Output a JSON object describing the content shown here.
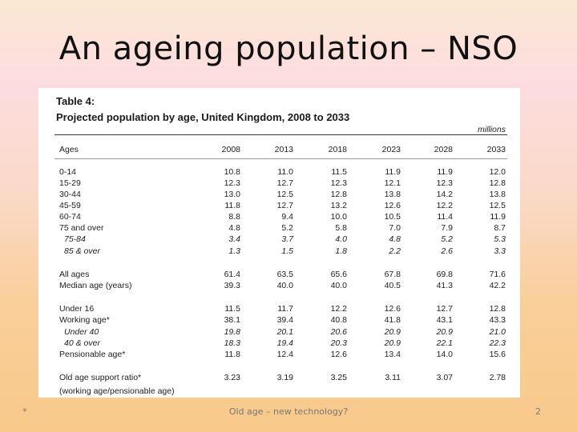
{
  "slide": {
    "title": "An ageing population – NSO",
    "footer_left": "*",
    "footer_center": "Old age – new technology?",
    "page_number": "2"
  },
  "table": {
    "caption": "Table 4:",
    "subcaption": "Projected population by age, United Kingdom, 2008 to 2033",
    "units": "millions",
    "header": {
      "label": "Ages",
      "years": [
        "2008",
        "2013",
        "2018",
        "2023",
        "2028",
        "2033"
      ]
    },
    "rows": [
      {
        "label": "0-14",
        "values": [
          "10.8",
          "11.0",
          "11.5",
          "11.9",
          "11.9",
          "12.0"
        ]
      },
      {
        "label": "15-29",
        "values": [
          "12.3",
          "12.7",
          "12.3",
          "12.1",
          "12.3",
          "12.8"
        ]
      },
      {
        "label": "30-44",
        "values": [
          "13.0",
          "12.5",
          "12.8",
          "13.8",
          "14.2",
          "13.8"
        ]
      },
      {
        "label": "45-59",
        "values": [
          "11.8",
          "12.7",
          "13.2",
          "12.6",
          "12.2",
          "12.5"
        ]
      },
      {
        "label": "60-74",
        "values": [
          "8.8",
          "9.4",
          "10.0",
          "10.5",
          "11.4",
          "11.9"
        ]
      },
      {
        "label": "75 and over",
        "values": [
          "4.8",
          "5.2",
          "5.8",
          "7.0",
          "7.9",
          "8.7"
        ]
      },
      {
        "label": "75-84",
        "values": [
          "3.4",
          "3.7",
          "4.0",
          "4.8",
          "5.2",
          "5.3"
        ]
      },
      {
        "label": "85 & over",
        "values": [
          "1.3",
          "1.5",
          "1.8",
          "2.2",
          "2.6",
          "3.3"
        ]
      },
      {
        "label": "All ages",
        "values": [
          "61.4",
          "63.5",
          "65.6",
          "67.8",
          "69.8",
          "71.6"
        ]
      },
      {
        "label": "Median age (years)",
        "values": [
          "39.3",
          "40.0",
          "40.0",
          "40.5",
          "41.3",
          "42.2"
        ]
      },
      {
        "label": "Under 16",
        "values": [
          "11.5",
          "11.7",
          "12.2",
          "12.6",
          "12.7",
          "12.8"
        ]
      },
      {
        "label": "Working age*",
        "values": [
          "38.1",
          "39.4",
          "40.8",
          "41.8",
          "43.1",
          "43.3"
        ]
      },
      {
        "label": "Under 40",
        "values": [
          "19.8",
          "20.1",
          "20.6",
          "20.9",
          "20.9",
          "21.0"
        ]
      },
      {
        "label": "40 & over",
        "values": [
          "18.3",
          "19.4",
          "20.3",
          "20.9",
          "22.1",
          "22.3"
        ]
      },
      {
        "label": "Pensionable age*",
        "values": [
          "11.8",
          "12.4",
          "12.6",
          "13.4",
          "14.0",
          "15.6"
        ]
      },
      {
        "label": "Old age support ratio*",
        "values": [
          "3.23",
          "3.19",
          "3.25",
          "3.11",
          "3.07",
          "2.78"
        ]
      }
    ],
    "ratio_note": "(working age/pensionable age)"
  }
}
